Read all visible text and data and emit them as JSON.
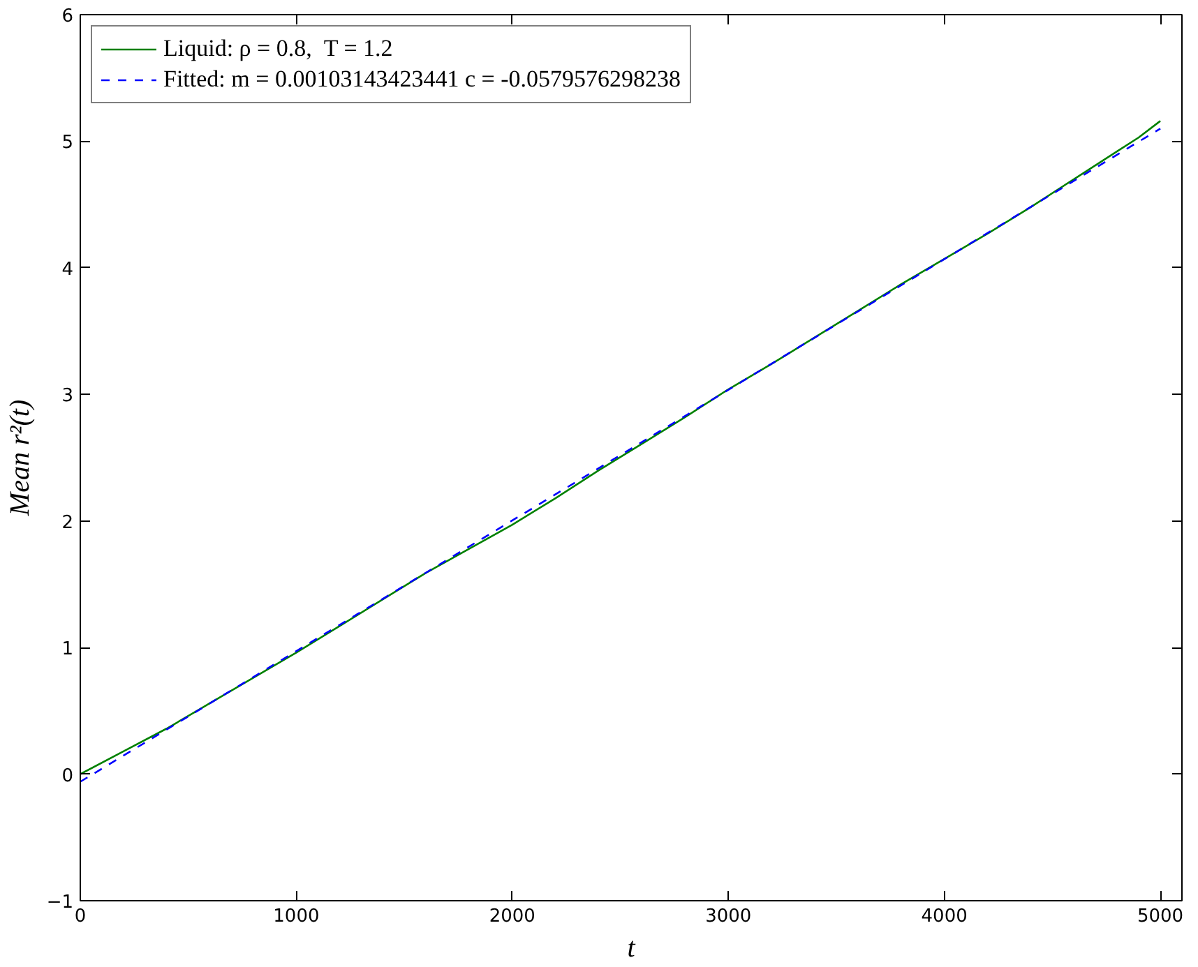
{
  "chart_data": {
    "type": "line",
    "xlabel": "t",
    "ylabel": "Mean r²(t)",
    "xlim": [
      0,
      5100
    ],
    "ylim": [
      -1,
      6
    ],
    "xticks": [
      0,
      1000,
      2000,
      3000,
      4000,
      5000
    ],
    "yticks": [
      {
        "value": -1,
        "label": "−1"
      },
      0,
      1,
      2,
      3,
      4,
      5,
      6
    ],
    "grid": false,
    "legend": "top left",
    "series": [
      {
        "name": "Liquid: ρ = 0.8,  T = 1.2",
        "color": "#008000",
        "line_style": "solid",
        "x": [
          0,
          200,
          400,
          600,
          800,
          1000,
          1200,
          1400,
          1600,
          1800,
          2000,
          2200,
          2400,
          2600,
          2800,
          3000,
          3200,
          3400,
          3600,
          3800,
          4000,
          4200,
          4400,
          4600,
          4800,
          4900,
          5000
        ],
        "values": [
          0.0,
          0.18,
          0.36,
          0.56,
          0.76,
          0.96,
          1.17,
          1.38,
          1.59,
          1.78,
          1.97,
          2.18,
          2.4,
          2.61,
          2.82,
          3.04,
          3.24,
          3.45,
          3.66,
          3.87,
          4.07,
          4.27,
          4.48,
          4.7,
          4.92,
          5.03,
          5.16
        ]
      },
      {
        "name": "Fitted: m = 0.00103143423441 c = -0.0579576298238",
        "color": "#0000ff",
        "line_style": "dashed",
        "x": [
          0,
          5000
        ],
        "values": [
          -0.06,
          5.1
        ]
      }
    ]
  }
}
